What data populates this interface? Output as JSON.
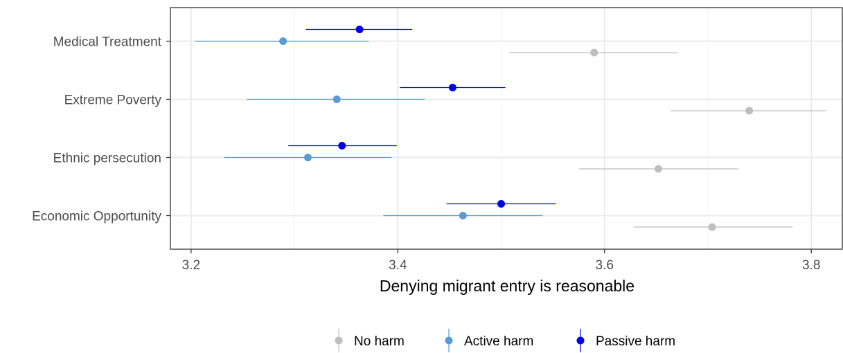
{
  "chart_data": {
    "type": "scatter",
    "title": "",
    "xlabel": "Denying migrant entry is reasonable",
    "ylabel": "",
    "xlim": [
      3.18,
      3.83
    ],
    "xticks": [
      3.2,
      3.4,
      3.6,
      3.8
    ],
    "xtick_labels": [
      "3.2",
      "3.4",
      "3.6",
      "3.8"
    ],
    "categories": [
      "Medical Treatment",
      "Extreme Poverty",
      "Ethnic persecution",
      "Economic Opportunity"
    ],
    "grid": true,
    "legend_position": "bottom",
    "series": [
      {
        "name": "No harm",
        "color": "#bebebe",
        "values": [
          3.59,
          3.74,
          3.652,
          3.704
        ],
        "ci_low": [
          3.508,
          3.664,
          3.575,
          3.628
        ],
        "ci_high": [
          3.671,
          3.814,
          3.73,
          3.782
        ]
      },
      {
        "name": "Active harm",
        "color": "#5a9bd4",
        "values": [
          3.289,
          3.341,
          3.313,
          3.463
        ],
        "ci_low": [
          3.204,
          3.254,
          3.232,
          3.386
        ],
        "ci_high": [
          3.372,
          3.426,
          3.394,
          3.54
        ]
      },
      {
        "name": "Passive harm",
        "color": "#0000ee",
        "values": [
          3.363,
          3.453,
          3.346,
          3.5
        ],
        "ci_low": [
          3.311,
          3.402,
          3.294,
          3.447
        ],
        "ci_high": [
          3.414,
          3.504,
          3.399,
          3.553
        ]
      }
    ]
  }
}
